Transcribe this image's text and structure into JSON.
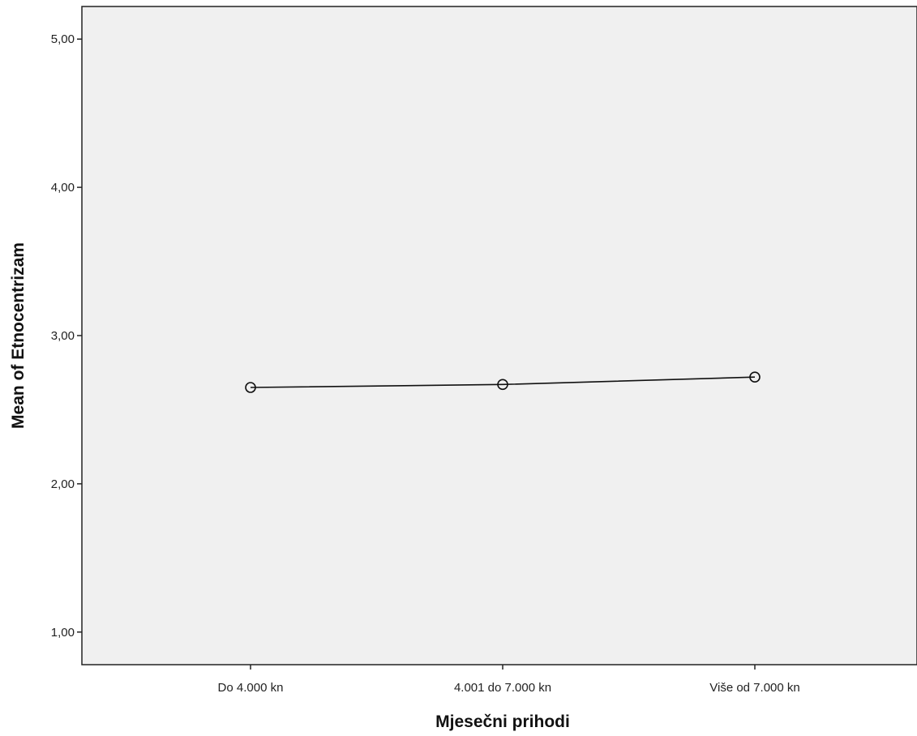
{
  "chart_data": {
    "type": "line",
    "categories": [
      "Do 4.000 kn",
      "4.001 do 7.000 kn",
      "Više od 7.000 kn"
    ],
    "series": [
      {
        "values": [
          2.65,
          2.67,
          2.72
        ]
      }
    ],
    "xlabel": "Mjesečni prihodi",
    "ylabel": "Mean of Etnocentrizam",
    "ylim": [
      0.78,
      5.22
    ],
    "yticks": [
      1,
      2,
      3,
      4,
      5
    ],
    "ytick_labels": [
      "1,00",
      "2,00",
      "3,00",
      "4,00",
      "5,00"
    ],
    "marker": "open-circle",
    "grid": false,
    "legend": "none",
    "colors": {
      "plot_background": "#f0f0f0",
      "line": "#111111",
      "axis": "#222222"
    }
  }
}
